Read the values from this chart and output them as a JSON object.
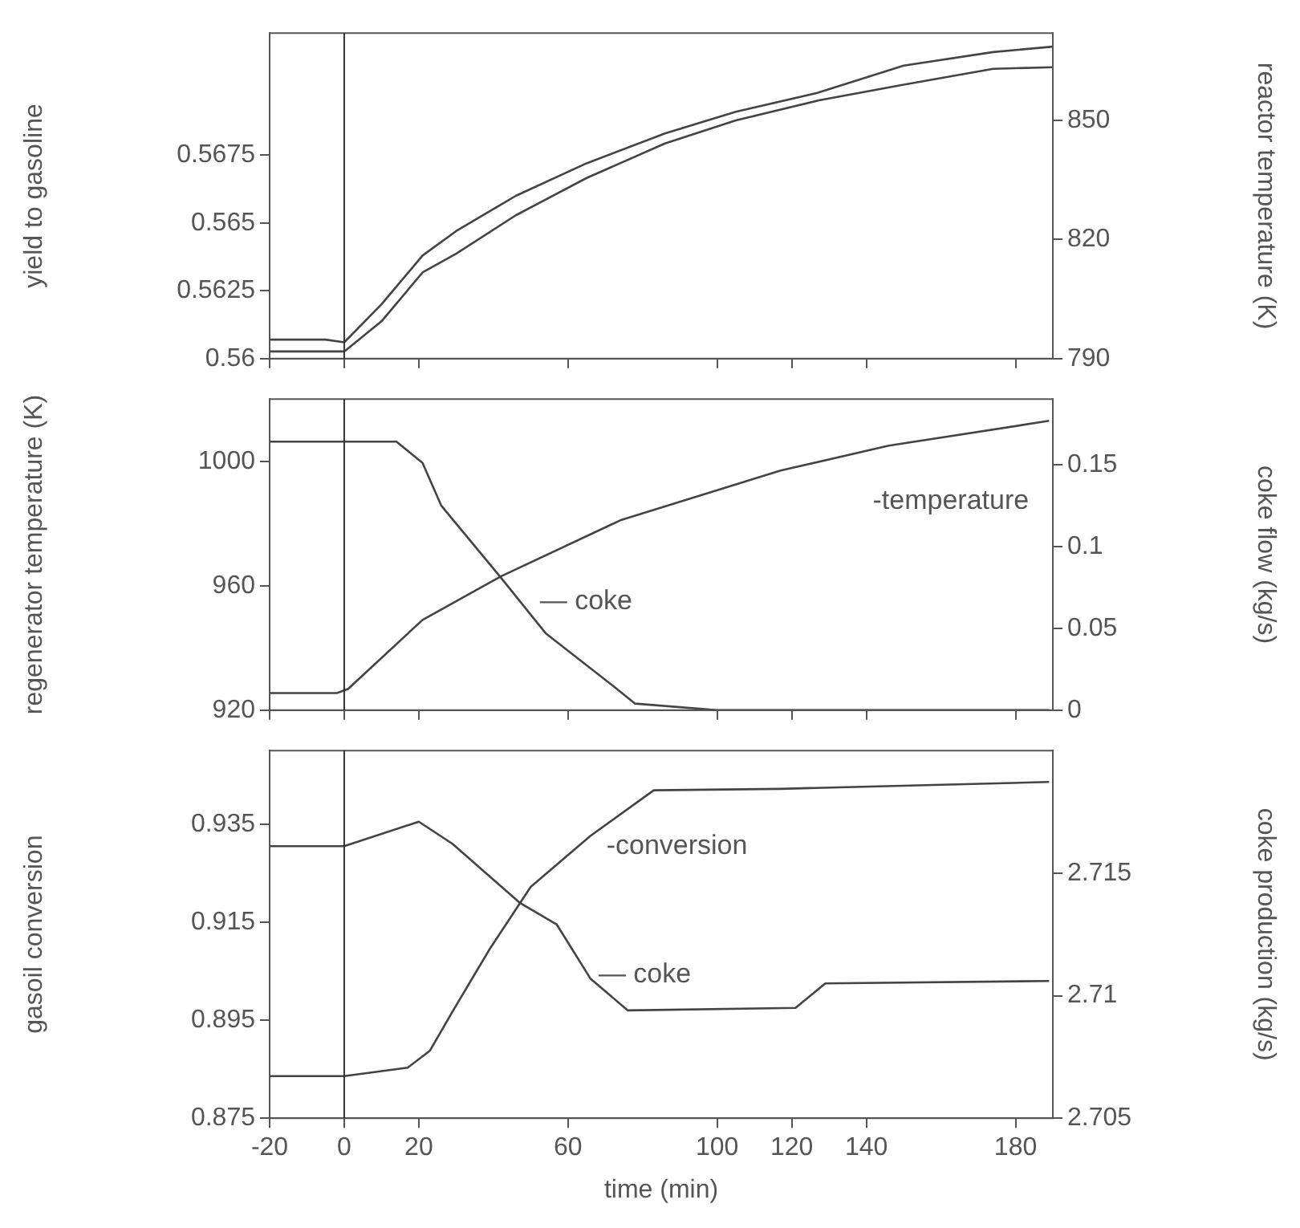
{
  "chart_data": [
    {
      "type": "line",
      "ylabel": "yield to gasoline",
      "y2label": "reactor temperature (K)",
      "xlim": [
        -20,
        190
      ],
      "xticks": [
        -20,
        0,
        20,
        60,
        100,
        120,
        140,
        180
      ],
      "ylim": [
        0.56,
        0.572
      ],
      "yticks": [
        0.56,
        0.5625,
        0.565,
        0.5675
      ],
      "y2lim": [
        790,
        872
      ],
      "y2ticks": [
        790,
        820,
        850
      ],
      "tick_labels": "y",
      "grid": false,
      "legend": false,
      "marker": "none",
      "ref_lines": [
        {
          "axis": "x",
          "value": 0,
          "color": "#333333"
        }
      ],
      "series": [
        {
          "color": "#444444",
          "x": [
            -20,
            -5,
            0,
            10,
            21,
            30,
            46,
            65,
            86,
            105,
            127,
            150,
            174,
            190
          ],
          "values": [
            0.5607,
            0.5607,
            0.5606,
            0.562,
            0.5638,
            0.5647,
            0.566,
            0.5672,
            0.5683,
            0.5691,
            0.5698,
            0.5708,
            0.5713,
            0.5715
          ]
        },
        {
          "color": "#444444",
          "axis": "y2",
          "x": [
            -20,
            -5,
            0,
            10,
            21,
            30,
            46,
            65,
            86,
            105,
            127,
            150,
            174,
            190
          ],
          "values": [
            791.8,
            791.8,
            791.8,
            799.4,
            811.7,
            816.4,
            826.1,
            835.5,
            844.2,
            850,
            855,
            859,
            863,
            863.4
          ]
        }
      ]
    },
    {
      "type": "line",
      "ylabel": "regenerator temperature (K)",
      "y2label": "coke flow (kg/s)",
      "xlim": [
        -20,
        190
      ],
      "xticks": [
        -20,
        0,
        20,
        60,
        100,
        120,
        140,
        180
      ],
      "ylim": [
        920,
        1020
      ],
      "yticks": [
        920,
        960,
        1000
      ],
      "y2lim": [
        0,
        0.19
      ],
      "y2ticks": [
        0,
        0.05,
        0.1,
        0.15
      ],
      "tick_labels": "y",
      "grid": false,
      "legend": false,
      "marker": "none",
      "ref_lines": [
        {
          "axis": "x",
          "value": 0,
          "color": "#333333"
        }
      ],
      "annotations": [
        "-temperature",
        "— coke"
      ],
      "series": [
        {
          "color": "#444444",
          "x": [
            -20,
            -2,
            1,
            21,
            42,
            74,
            117,
            146,
            189
          ],
          "values": [
            925.5,
            925.5,
            926.8,
            949,
            963,
            981,
            997,
            1005,
            1013
          ]
        },
        {
          "color": "#444444",
          "axis": "y2",
          "x": [
            -20,
            14,
            21,
            26,
            42,
            54,
            72,
            78,
            100,
            189
          ],
          "values": [
            0.164,
            0.164,
            0.151,
            0.125,
            0.081,
            0.047,
            0.015,
            0.004,
            0,
            0
          ]
        }
      ]
    },
    {
      "type": "line",
      "ylabel": "gasoil conversion",
      "y2label": "coke production (kg/s)",
      "xlabel": "time (min)",
      "xlim": [
        -20,
        190
      ],
      "xticks": [
        -20,
        0,
        20,
        60,
        100,
        120,
        140,
        180
      ],
      "ylim": [
        0.875,
        0.95
      ],
      "yticks": [
        0.875,
        0.895,
        0.915,
        0.935
      ],
      "y2lim": [
        2.705,
        2.72
      ],
      "y2ticks": [
        2.705,
        2.71,
        2.715
      ],
      "grid": false,
      "legend": false,
      "marker": "none",
      "ref_lines": [
        {
          "axis": "x",
          "value": 0,
          "color": "#333333"
        }
      ],
      "annotations": [
        "-conversion",
        "— coke"
      ],
      "series": [
        {
          "color": "#444444",
          "x": [
            -20,
            0,
            17,
            23,
            29,
            39,
            50,
            66,
            83,
            117,
            189
          ],
          "values": [
            0.8836,
            0.8836,
            0.8853,
            0.8888,
            0.8967,
            0.9095,
            0.9222,
            0.9326,
            0.9419,
            0.9422,
            0.9436
          ]
        },
        {
          "color": "#444444",
          "axis": "y2",
          "x": [
            -20,
            0,
            20,
            29,
            47,
            57,
            66,
            76,
            121,
            129,
            189
          ],
          "values": [
            2.7161,
            2.7161,
            2.7171,
            2.7162,
            2.7138,
            2.7129,
            2.7107,
            2.7094,
            2.7095,
            2.7105,
            2.7106
          ]
        }
      ]
    }
  ]
}
